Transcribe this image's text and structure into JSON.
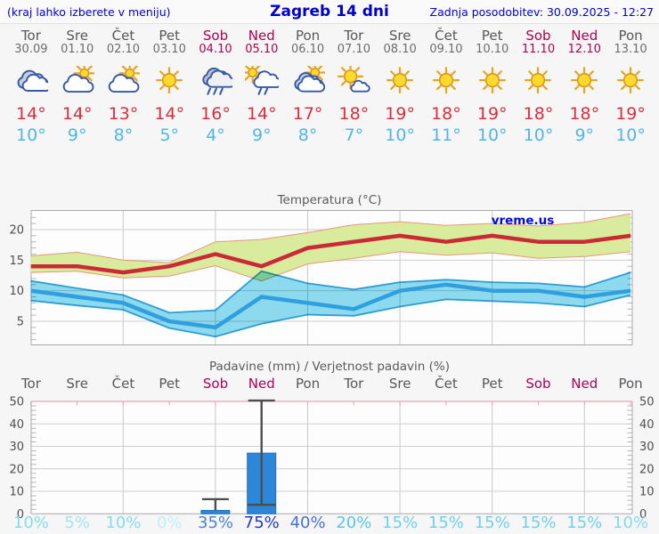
{
  "header": {
    "left_note": "(kraj lahko izberete v meniju)",
    "title": "Zagreb 14 dni",
    "updated": "Zadnja posodobitev: 30.09.2025 - 12:27"
  },
  "colors": {
    "weekday_text": "#57575c",
    "weekend_text": "#b0004e",
    "high_temp_text": "#d92f3d",
    "low_temp_text": "#52b5e9",
    "header_blue": "#0000d8",
    "high_line": "#cc2936",
    "high_band_fill": "#d9eb9d",
    "high_band_border": "#e9967a",
    "low_line": "#2f9fdf",
    "low_band_fill": "#8edcef",
    "low_band_border": "#2b9fd8",
    "bar_fill": "#2e86d8",
    "whisker": "#4d4d4d",
    "pink_axis": "#ef9fae"
  },
  "days": [
    {
      "name": "Tor",
      "date": "30.09",
      "weekend": false,
      "icon": "cloudy",
      "high": "14°",
      "low": "10°"
    },
    {
      "name": "Sre",
      "date": "01.10",
      "weekend": false,
      "icon": "partly-sunny",
      "high": "14°",
      "low": "9°"
    },
    {
      "name": "Čet",
      "date": "02.10",
      "weekend": false,
      "icon": "partly-sunny",
      "high": "13°",
      "low": "8°"
    },
    {
      "name": "Pet",
      "date": "03.10",
      "weekend": false,
      "icon": "sunny",
      "high": "14°",
      "low": "5°"
    },
    {
      "name": "Sob",
      "date": "04.10",
      "weekend": true,
      "icon": "rain",
      "high": "16°",
      "low": "4°"
    },
    {
      "name": "Ned",
      "date": "05.10",
      "weekend": true,
      "icon": "sun-rain",
      "high": "14°",
      "low": "9°"
    },
    {
      "name": "Pon",
      "date": "06.10",
      "weekend": false,
      "icon": "mostly-cloudy",
      "high": "17°",
      "low": "8°"
    },
    {
      "name": "Tor",
      "date": "07.10",
      "weekend": false,
      "icon": "sun-cloud",
      "high": "18°",
      "low": "7°"
    },
    {
      "name": "Sre",
      "date": "08.10",
      "weekend": false,
      "icon": "sunny",
      "high": "19°",
      "low": "10°"
    },
    {
      "name": "Čet",
      "date": "09.10",
      "weekend": false,
      "icon": "sunny",
      "high": "18°",
      "low": "11°"
    },
    {
      "name": "Pet",
      "date": "10.10",
      "weekend": false,
      "icon": "sunny",
      "high": "19°",
      "low": "10°"
    },
    {
      "name": "Sob",
      "date": "11.10",
      "weekend": true,
      "icon": "sunny",
      "high": "18°",
      "low": "10°"
    },
    {
      "name": "Ned",
      "date": "12.10",
      "weekend": true,
      "icon": "sunny",
      "high": "18°",
      "low": "9°"
    },
    {
      "name": "Pon",
      "date": "13.10",
      "weekend": false,
      "icon": "sunny",
      "high": "19°",
      "low": "10°"
    }
  ],
  "chart_data": [
    {
      "type": "line",
      "title": "Temperatura (°C)",
      "watermark": "vreme.us",
      "ylabel": "°C",
      "ylim": [
        1.2,
        23
      ],
      "yticks": [
        5,
        10,
        15,
        20
      ],
      "grid_days": [
        3,
        5,
        7,
        9,
        11,
        13
      ],
      "high": [
        14,
        14,
        13,
        14,
        16,
        14,
        17,
        18,
        19,
        18,
        19,
        18,
        18,
        19
      ],
      "high_range_upper": [
        15.7,
        16.3,
        15.0,
        14.6,
        18.0,
        18.4,
        19.5,
        20.8,
        21.3,
        20.7,
        21.0,
        20.6,
        21.2,
        22.6
      ],
      "high_range_lower": [
        13.0,
        13.2,
        12.1,
        12.4,
        14.1,
        11.6,
        14.4,
        15.3,
        16.4,
        15.8,
        16.2,
        15.3,
        15.6,
        16.4
      ],
      "low": [
        10,
        9,
        8,
        5,
        4,
        9,
        8,
        7,
        10,
        11,
        10,
        10,
        9,
        10
      ],
      "low_range_upper": [
        11.6,
        10.4,
        9.3,
        6.4,
        6.8,
        13.2,
        11.2,
        10.2,
        11.4,
        11.8,
        11.4,
        11.2,
        10.6,
        13.0
      ],
      "low_range_lower": [
        8.4,
        7.6,
        6.9,
        3.9,
        2.5,
        4.6,
        6.1,
        5.9,
        7.4,
        8.6,
        8.3,
        8.0,
        7.4,
        9.3
      ]
    },
    {
      "type": "bar",
      "title": "Padavine (mm) / Verjetnost padavin (%)",
      "ylabel": "mm",
      "ylim": [
        0,
        50
      ],
      "yticks": [
        0,
        10,
        20,
        30,
        40,
        50
      ],
      "grid_days": [
        3,
        5,
        7,
        9,
        11,
        13
      ],
      "amounts": [
        0,
        0,
        0,
        0,
        1.5,
        27,
        0,
        0,
        0,
        0,
        0,
        0,
        0,
        0
      ],
      "whisker_high": [
        0,
        0,
        0,
        0,
        6.5,
        50.4,
        0,
        0,
        0,
        0,
        0,
        0,
        0,
        0
      ],
      "median": [
        0,
        0,
        0,
        0,
        0,
        4,
        0,
        0,
        0,
        0,
        0,
        0,
        0,
        0
      ],
      "probabilities": [
        "10%",
        "5%",
        "10%",
        "0%",
        "35%",
        "75%",
        "40%",
        "20%",
        "15%",
        "15%",
        "15%",
        "15%",
        "15%",
        "10%"
      ],
      "probability_colors": [
        "#85daf1",
        "#a2e4f6",
        "#85daf1",
        "#bceffb",
        "#4d82d8",
        "#2336cb",
        "#4372d3",
        "#5ac4ea",
        "#6fd0ee",
        "#6fd0ee",
        "#6fd0ee",
        "#6fd0ee",
        "#6fd0ee",
        "#85daf1"
      ]
    }
  ]
}
